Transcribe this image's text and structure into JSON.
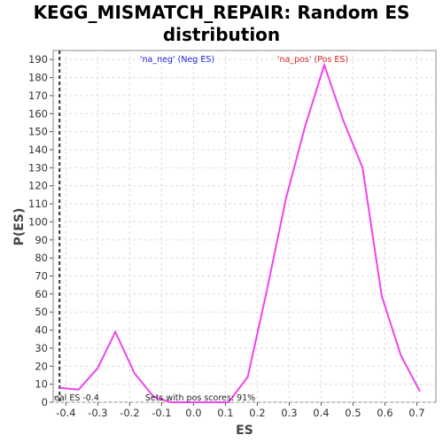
{
  "chart_data": {
    "type": "line",
    "title_line1": "KEGG_MISMATCH_REPAIR: Random ES",
    "title_line2": "distribution",
    "xlabel": "ES",
    "ylabel": "P(ES)",
    "xlim": [
      -0.44,
      0.76
    ],
    "ylim": [
      0,
      195
    ],
    "x_ticks": [
      -0.4,
      -0.3,
      -0.2,
      -0.1,
      0.0,
      0.1,
      0.2,
      0.3,
      0.4,
      0.5,
      0.6,
      0.7
    ],
    "x_tick_labels": [
      "-0.4",
      "-0.3",
      "-0.2",
      "-0.1",
      "0.0",
      "0.1",
      "0.2",
      "0.3",
      "0.4",
      "0.5",
      "0.6",
      "0.7"
    ],
    "y_ticks": [
      0,
      10,
      20,
      30,
      40,
      50,
      60,
      70,
      80,
      90,
      100,
      110,
      120,
      130,
      140,
      150,
      160,
      170,
      180,
      190
    ],
    "grid": true,
    "series": [
      {
        "color": "#ee44ee",
        "x": [
          -0.42,
          -0.36,
          -0.3,
          -0.245,
          -0.185,
          -0.125,
          -0.07,
          -0.01,
          0.05,
          0.11,
          0.17,
          0.23,
          0.29,
          0.35,
          0.41,
          0.47,
          0.53,
          0.59,
          0.65,
          0.71
        ],
        "y": [
          8,
          7,
          19,
          39,
          16,
          3,
          0,
          0,
          0,
          0,
          14,
          62,
          113,
          153,
          187,
          156,
          130,
          59,
          26,
          6
        ]
      }
    ],
    "real_es": -0.42,
    "annotations": {
      "neg_label": "'na_neg' (Neg ES)",
      "pos_label": "'na_pos' (Pos ES)",
      "real_es_label": "eal ES -0.4",
      "sets_label": "Sets with pos scores: 91%"
    },
    "colors": {
      "neg": "#2222dd",
      "pos": "#dd2222",
      "line": "#ee44ee",
      "real_es_line": "#333333",
      "grid": "#dddddd"
    }
  }
}
